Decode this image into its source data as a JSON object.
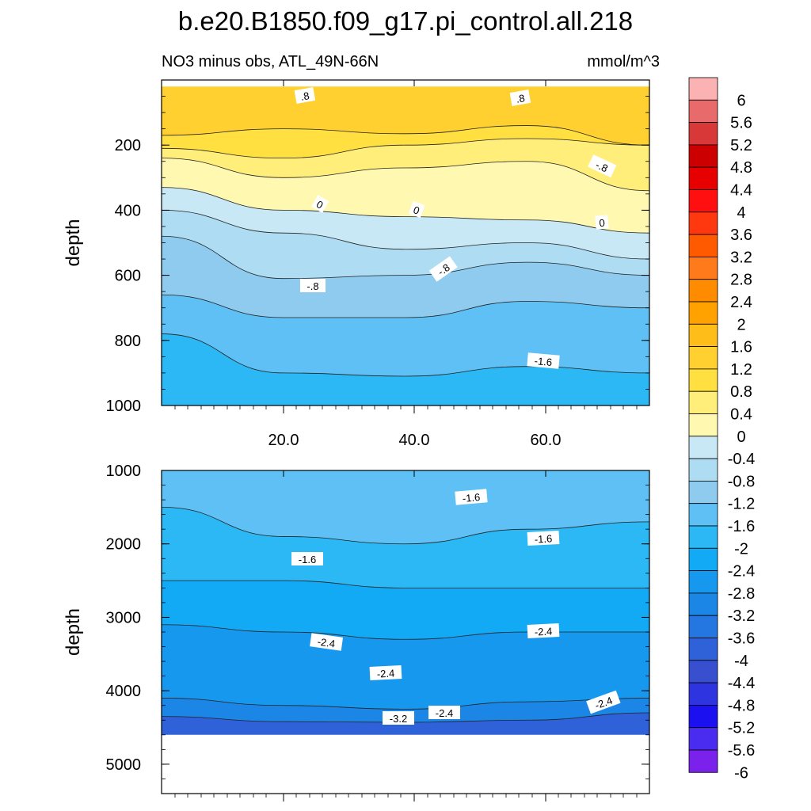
{
  "chart_data": {
    "type": "heatmap",
    "title": "b.e20.B1850.f09_g17.pi_control.all.218",
    "colorbar": {
      "unit": "mmol/m^3",
      "levels": [
        "6",
        "5.6",
        "5.2",
        "4.8",
        "4.4",
        "4",
        "3.6",
        "3.2",
        "2.8",
        "2.4",
        "2",
        "1.6",
        "1.2",
        "0.8",
        "0.4",
        "0",
        "-0.4",
        "-0.8",
        "-1.2",
        "-1.6",
        "-2",
        "-2.4",
        "-2.8",
        "-3.2",
        "-3.6",
        "-4",
        "-4.4",
        "-4.8",
        "-5.2",
        "-5.6",
        "-6"
      ],
      "colors": [
        "#fbb2b2",
        "#e86a6a",
        "#d93838",
        "#cc0000",
        "#e60000",
        "#ff0f0f",
        "#ff3810",
        "#ff5a00",
        "#ff7a1a",
        "#ff8c00",
        "#ffa200",
        "#ffbd1a",
        "#ffd030",
        "#ffe040",
        "#ffee7a",
        "#fff8b0",
        "#c8e8f6",
        "#aedcf2",
        "#8ecbef",
        "#5ec0f4",
        "#2cb8f4",
        "#12aaf5",
        "#1598ee",
        "#1b86e6",
        "#2476e0",
        "#2f62d8",
        "#3850d0",
        "#2e35e0",
        "#1a10f0",
        "#4a2cf0",
        "#7a22ec"
      ]
    },
    "panels": [
      {
        "name": "upper",
        "subtitle_left": "NO3 minus obs, ATL_49N-66N",
        "subtitle_right": "mmol/m^3",
        "ylabel": "depth",
        "ylim": [
          0,
          1000
        ],
        "xlim": [
          1,
          76
        ],
        "y_ticks": [
          "200",
          "400",
          "600",
          "800",
          "1000"
        ],
        "x_tick_labels": [
          "20.0",
          "40.0",
          "60.0"
        ],
        "contour_labels": [
          ".8",
          ".8",
          "-.8",
          "0",
          "0",
          "0",
          "-.8",
          "-.8",
          "-1.6"
        ],
        "bands": [
          {
            "color": "#ffd030",
            "top": [
              20,
              20,
              20,
              20,
              20
            ],
            "bottom": [
              170,
              150,
              165,
              140,
              200
            ]
          },
          {
            "color": "#ffe040",
            "top": [
              170,
              150,
              165,
              140,
              200
            ],
            "bottom": [
              210,
              240,
              200,
              180,
              200
            ]
          },
          {
            "color": "#ffee7a",
            "top": [
              210,
              240,
              200,
              180,
              200
            ],
            "bottom": [
              240,
              300,
              270,
              250,
              340
            ]
          },
          {
            "color": "#fff8b0",
            "top": [
              240,
              300,
              270,
              250,
              340
            ],
            "bottom": [
              330,
              400,
              420,
              430,
              470
            ]
          },
          {
            "color": "#c8e8f6",
            "top": [
              330,
              400,
              420,
              430,
              470
            ],
            "bottom": [
              400,
              470,
              520,
              500,
              550
            ]
          },
          {
            "color": "#aedcf2",
            "top": [
              400,
              470,
              520,
              500,
              550
            ],
            "bottom": [
              480,
              610,
              600,
              560,
              600
            ]
          },
          {
            "color": "#8ecbef",
            "top": [
              480,
              610,
              600,
              560,
              600
            ],
            "bottom": [
              660,
              730,
              730,
              680,
              700
            ]
          },
          {
            "color": "#5ec0f4",
            "top": [
              660,
              730,
              730,
              680,
              700
            ],
            "bottom": [
              780,
              900,
              910,
              880,
              900
            ]
          },
          {
            "color": "#2cb8f4",
            "top": [
              780,
              900,
              910,
              880,
              900
            ],
            "bottom": [
              1000,
              1000,
              1000,
              1000,
              1000
            ]
          }
        ]
      },
      {
        "name": "lower",
        "ylabel": "depth",
        "ylim": [
          1000,
          5400
        ],
        "bottom_data_depth": 4600,
        "y_ticks": [
          "1000",
          "2000",
          "3000",
          "4000",
          "5000"
        ],
        "contour_labels": [
          "-1.6",
          "-1.6",
          "-1.6",
          "-2.4",
          "-2.4",
          "-2.4",
          "-2.4",
          "-2.4",
          "-3.2"
        ],
        "bands": [
          {
            "color": "#5ec0f4",
            "top": [
              1000,
              1000,
              1000,
              1000,
              1000
            ],
            "bottom": [
              1500,
              1900,
              2000,
              1800,
              1700
            ]
          },
          {
            "color": "#2cb8f4",
            "top": [
              1500,
              1900,
              2000,
              1800,
              1700
            ],
            "bottom": [
              2500,
              2500,
              2600,
              2600,
              2600
            ]
          },
          {
            "color": "#12aaf5",
            "top": [
              2500,
              2500,
              2600,
              2600,
              2600
            ],
            "bottom": [
              3100,
              3200,
              3300,
              3200,
              3200
            ]
          },
          {
            "color": "#1598ee",
            "top": [
              3100,
              3200,
              3300,
              3200,
              3200
            ],
            "bottom": [
              4100,
              4200,
              4250,
              4150,
              4100
            ]
          },
          {
            "color": "#1b86e6",
            "top": [
              4100,
              4200,
              4250,
              4150,
              4100
            ],
            "bottom": [
              4350,
              4420,
              4430,
              4400,
              4300
            ]
          },
          {
            "color": "#2f62d8",
            "top": [
              4350,
              4420,
              4430,
              4400,
              4300
            ],
            "bottom": [
              4600,
              4600,
              4600,
              4600,
              4600
            ]
          }
        ]
      }
    ]
  }
}
